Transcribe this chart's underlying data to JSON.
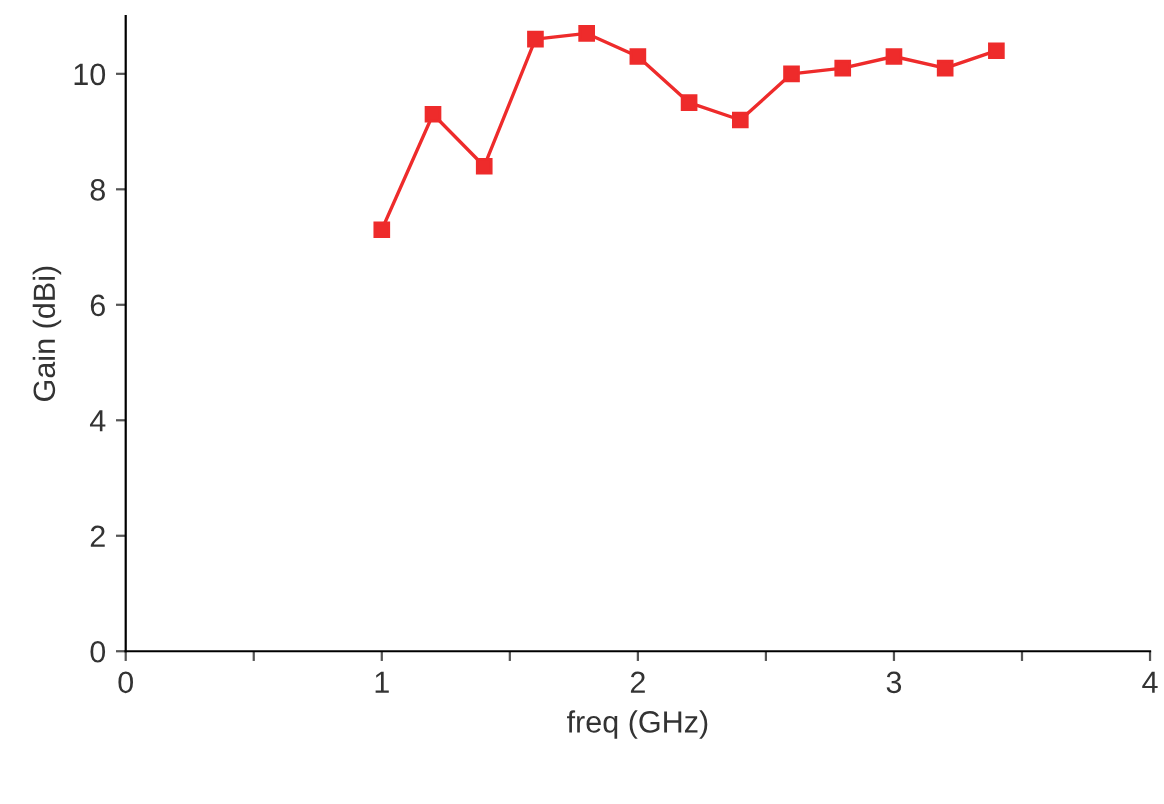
{
  "chart_data": {
    "type": "line",
    "xlabel": "freq (GHz)",
    "ylabel": "Gain (dBi)",
    "x": [
      1.0,
      1.2,
      1.4,
      1.6,
      1.8,
      2.0,
      2.2,
      2.4,
      2.6,
      2.8,
      3.0,
      3.2,
      3.4
    ],
    "series": [
      {
        "color": "#ee2b2b",
        "values": [
          7.3,
          9.3,
          8.4,
          10.6,
          10.7,
          10.3,
          9.5,
          9.2,
          10.0,
          10.1,
          10.3,
          10.1,
          10.4
        ]
      }
    ],
    "xlim": [
      0,
      4
    ],
    "ylim": [
      0,
      11
    ],
    "xticks": [
      0,
      {
        "value": 0.5,
        "label": null
      },
      1,
      {
        "value": 1.5,
        "label": null
      },
      2,
      {
        "value": 2.5,
        "label": null
      },
      3,
      {
        "value": 3.5,
        "label": null
      },
      4
    ],
    "yticks": [
      0,
      2,
      4,
      6,
      8,
      10
    ],
    "marker": "square",
    "line_style": "solid",
    "grid": false,
    "legend": false
  }
}
